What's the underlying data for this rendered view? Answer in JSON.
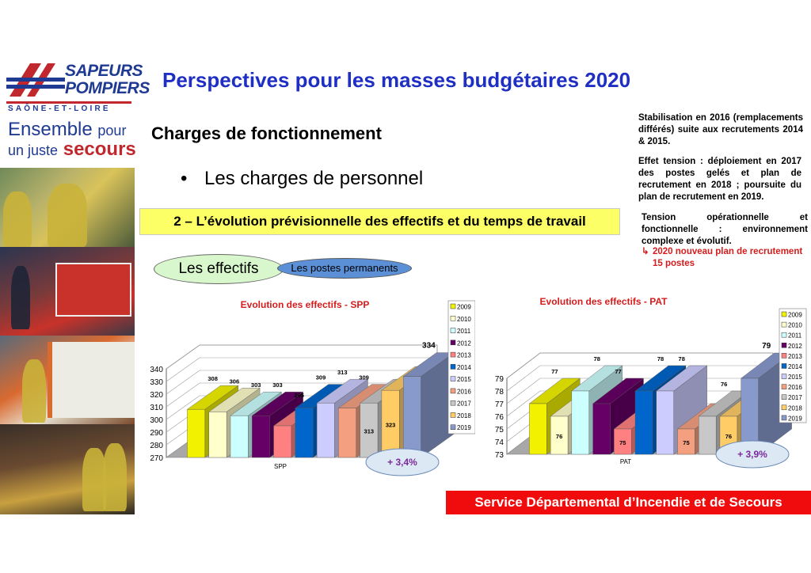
{
  "logo": {
    "line1": "SAPEURS",
    "line2": "POMPIERS",
    "dept": "SAÔNE-ET-LOIRE",
    "slogan_part1": "Ensemble",
    "slogan_part2": "pour",
    "slogan_part3": "un juste",
    "slogan_part4": "secours"
  },
  "title": "Perspectives pour les masses budgétaires 2020",
  "subtitle": "Charges de fonctionnement",
  "bullet": "Les charges de personnel",
  "banner": "2 – L’évolution prévisionnelle des effectifs et du temps de travail",
  "oval_effectifs": "Les effectifs",
  "oval_postes": "Les postes permanents",
  "notes": {
    "note1": "Stabilisation en 2016 (remplacements différés) suite aux recrutements 2014 & 2015.",
    "note2": "Effet tension : déploiement en 2017 des postes gelés et plan de recrutement en 2018 ; poursuite du plan de recrutement en 2019.",
    "note3": "Tension opérationnelle et fonctionnelle : environnement complexe et évolutif.",
    "note4_arrow": "↳",
    "note4_line1": "2020 nouveau plan de recrutement",
    "note4_line2": "15 postes"
  },
  "footer": "Service Départemental d’Incendie et de Secours",
  "colors": {
    "title_blue": "#1f2fc4",
    "chart_title_red": "#d41c1c",
    "badge_text": "#7a2a9a",
    "footer_red": "#f00c0c"
  },
  "chart_data": [
    {
      "type": "bar",
      "title": "Evolution des effectifs - SPP",
      "categories": [
        "SPP"
      ],
      "series": [
        {
          "name": "2009",
          "value": 308,
          "color": "#f2f200"
        },
        {
          "name": "2010",
          "value": 306,
          "color": "#ffffcc"
        },
        {
          "name": "2011",
          "value": 303,
          "color": "#ccffff"
        },
        {
          "name": "2012",
          "value": 303,
          "color": "#660066"
        },
        {
          "name": "2013",
          "value": 295,
          "color": "#ff8080"
        },
        {
          "name": "2014",
          "value": 309,
          "color": "#0066cc"
        },
        {
          "name": "2015",
          "value": 313,
          "color": "#ccccff"
        },
        {
          "name": "2016",
          "value": 309,
          "color": "#f4a080"
        },
        {
          "name": "2017",
          "value": 313,
          "color": "#c8c8c8"
        },
        {
          "name": "2018",
          "value": 323,
          "color": "#ffcc66"
        },
        {
          "name": "2019",
          "value": 334,
          "color": "#8899cc"
        }
      ],
      "y_ticks": [
        270,
        280,
        290,
        300,
        310,
        320,
        330,
        340
      ],
      "ylim": [
        270,
        340
      ],
      "badge": "+ 3,4%",
      "legend": "right"
    },
    {
      "type": "bar",
      "title": "Evolution des effectifs - PAT",
      "categories": [
        "PAT"
      ],
      "series": [
        {
          "name": "2009",
          "value": 77,
          "color": "#f2f200"
        },
        {
          "name": "2010",
          "value": 76,
          "color": "#ffffcc"
        },
        {
          "name": "2011",
          "value": 78,
          "color": "#ccffff"
        },
        {
          "name": "2012",
          "value": 77,
          "color": "#660066"
        },
        {
          "name": "2013",
          "value": 75,
          "color": "#ff8080"
        },
        {
          "name": "2014",
          "value": 78,
          "color": "#0066cc"
        },
        {
          "name": "2015",
          "value": 78,
          "color": "#ccccff"
        },
        {
          "name": "2016",
          "value": 75,
          "color": "#f4a080"
        },
        {
          "name": "2017",
          "value": 76,
          "color": "#c8c8c8"
        },
        {
          "name": "2018",
          "value": 76,
          "color": "#ffcc66"
        },
        {
          "name": "2019",
          "value": 79,
          "color": "#8899cc"
        }
      ],
      "y_ticks": [
        73,
        74,
        75,
        76,
        77,
        78,
        79
      ],
      "ylim": [
        73,
        79
      ],
      "badge": "+ 3,9%",
      "legend": "right"
    }
  ]
}
